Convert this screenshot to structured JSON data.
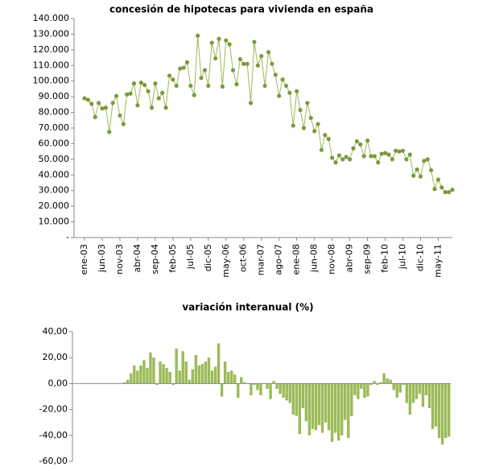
{
  "chart_data": [
    {
      "type": "line",
      "title": "concesión de hipotecas para vivienda en españa",
      "categories": [
        "ene-03",
        null,
        null,
        null,
        null,
        "jun-03",
        null,
        null,
        null,
        null,
        "nov-03",
        null,
        null,
        null,
        null,
        "abr-04",
        null,
        null,
        null,
        null,
        "sep-04",
        null,
        null,
        null,
        null,
        "feb-05",
        null,
        null,
        null,
        null,
        "jul-05",
        null,
        null,
        null,
        null,
        "dic-05",
        null,
        null,
        null,
        null,
        "may-06",
        null,
        null,
        null,
        null,
        "oct-06",
        null,
        null,
        null,
        null,
        "mar-07",
        null,
        null,
        null,
        null,
        "ago-07",
        null,
        null,
        null,
        null,
        "ene-08",
        null,
        null,
        null,
        null,
        "jun-08",
        null,
        null,
        null,
        null,
        "nov-08",
        null,
        null,
        null,
        null,
        "abr-09",
        null,
        null,
        null,
        null,
        "sep-09",
        null,
        null,
        null,
        null,
        "feb-10",
        null,
        null,
        null,
        null,
        "jul-10",
        null,
        null,
        null,
        null,
        "dic-10",
        null,
        null,
        null,
        null,
        "may-11",
        null,
        null,
        null,
        null
      ],
      "values": [
        89000,
        88000,
        85500,
        77000,
        86000,
        82500,
        83000,
        67500,
        86000,
        90500,
        78000,
        72500,
        91500,
        92000,
        98500,
        84500,
        99000,
        97500,
        93500,
        83000,
        98500,
        89000,
        92500,
        83000,
        103500,
        101000,
        97000,
        108000,
        108500,
        112000,
        97000,
        91000,
        129000,
        102000,
        107000,
        97000,
        124500,
        114500,
        127000,
        96500,
        126000,
        123500,
        107000,
        98000,
        114000,
        111000,
        111000,
        86000,
        125000,
        110000,
        116000,
        97000,
        118500,
        111000,
        104000,
        90500,
        101000,
        97000,
        92500,
        71500,
        93500,
        81500,
        70000,
        86000,
        76500,
        68000,
        72500,
        56000,
        65500,
        63000,
        51000,
        48000,
        52500,
        50000,
        51500,
        50000,
        57000,
        61500,
        59500,
        52000,
        62000,
        52000,
        52000,
        48000,
        53500,
        54000,
        53000,
        50000,
        55500,
        55000,
        55500,
        50000,
        53000,
        39500,
        43500,
        39000,
        49000,
        50000,
        43000,
        31000,
        37000,
        32000,
        29000,
        29000,
        30500
      ],
      "color": "#9bbb59",
      "marker_color": "#7a9a3a",
      "ylim": [
        0,
        140000
      ],
      "yticks": [
        {
          "value": 0,
          "label": "-"
        },
        {
          "value": 10000,
          "label": "10.000"
        },
        {
          "value": 20000,
          "label": "20.000"
        },
        {
          "value": 30000,
          "label": "30.000"
        },
        {
          "value": 40000,
          "label": "40.000"
        },
        {
          "value": 50000,
          "label": "50.000"
        },
        {
          "value": 60000,
          "label": "60.000"
        },
        {
          "value": 70000,
          "label": "70.000"
        },
        {
          "value": 80000,
          "label": "80.000"
        },
        {
          "value": 90000,
          "label": "90.000"
        },
        {
          "value": 100000,
          "label": "100.000"
        },
        {
          "value": 110000,
          "label": "110.000"
        },
        {
          "value": 120000,
          "label": "120.000"
        },
        {
          "value": 130000,
          "label": "130.000"
        },
        {
          "value": 140000,
          "label": "140.000"
        }
      ],
      "grid": false
    },
    {
      "type": "bar",
      "title": "variación interanual (%)",
      "values": [
        1,
        3,
        8,
        14,
        10,
        14,
        18,
        12,
        24,
        20,
        -1,
        17,
        15,
        12,
        9,
        -1,
        27,
        10,
        25,
        17,
        3,
        11,
        22,
        14,
        15,
        17,
        20,
        10,
        13,
        31,
        -10,
        17,
        9,
        10,
        7,
        -11,
        5,
        1,
        0,
        -9,
        -1,
        -5,
        -9,
        0,
        -4,
        -12,
        2,
        -4,
        -8,
        -11,
        -13,
        -15,
        -24,
        -25,
        -39,
        -19,
        -29,
        -40,
        -35,
        -36,
        -32,
        -38,
        -30,
        -36,
        -45,
        -38,
        -44,
        -40,
        -28,
        -42,
        -25,
        -9,
        -12,
        -4,
        -11,
        -10,
        -1,
        2,
        -1,
        1,
        8,
        4,
        3,
        -5,
        -11,
        -7,
        -1,
        -15,
        -24,
        -15,
        -12,
        -8,
        -18,
        -9,
        -19,
        -35,
        -33,
        -42,
        -47,
        -42,
        -41
      ],
      "color": "#9bbb59",
      "ylim": [
        -60,
        40
      ],
      "yticks": [
        {
          "value": -60,
          "label": "-60,00"
        },
        {
          "value": -40,
          "label": "-40,00"
        },
        {
          "value": -20,
          "label": "-20,00"
        },
        {
          "value": 0,
          "label": "0,00"
        },
        {
          "value": 20,
          "label": "20,00"
        },
        {
          "value": 40,
          "label": "40,00"
        }
      ],
      "grid": false
    }
  ]
}
